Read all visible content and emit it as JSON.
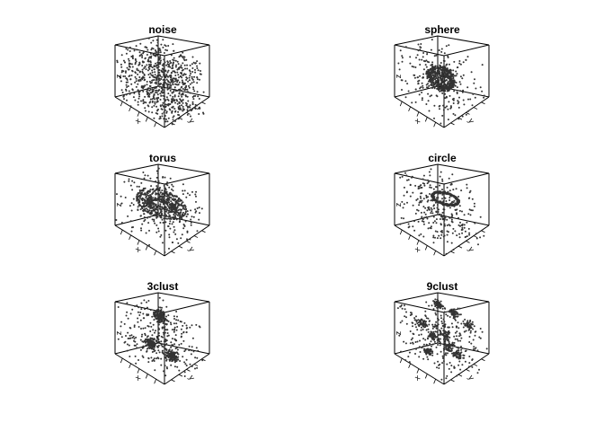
{
  "chart_data": [
    {
      "type": "scatter",
      "title": "noise",
      "axes": {
        "x": "x",
        "y": "y",
        "z": "z"
      },
      "pattern": "uniform-noise"
    },
    {
      "type": "scatter",
      "title": "sphere",
      "axes": {
        "x": "x",
        "y": "y",
        "z": "z"
      },
      "pattern": "sphere-plus-noise"
    },
    {
      "type": "scatter",
      "title": "torus",
      "axes": {
        "x": "x",
        "y": "y",
        "z": "z"
      },
      "pattern": "torus-plus-noise"
    },
    {
      "type": "scatter",
      "title": "circle",
      "axes": {
        "x": "x",
        "y": "y",
        "z": "z"
      },
      "pattern": "circle-plus-noise"
    },
    {
      "type": "scatter",
      "title": "3clust",
      "axes": {
        "x": "x",
        "y": "y",
        "z": "z"
      },
      "pattern": "3-clusters-plus-noise"
    },
    {
      "type": "scatter",
      "title": "9clust",
      "axes": {
        "x": "x",
        "y": "y",
        "z": "z"
      },
      "pattern": "9-clusters-plus-noise"
    }
  ],
  "colors": {
    "points": "#333333",
    "box": "#000000"
  }
}
